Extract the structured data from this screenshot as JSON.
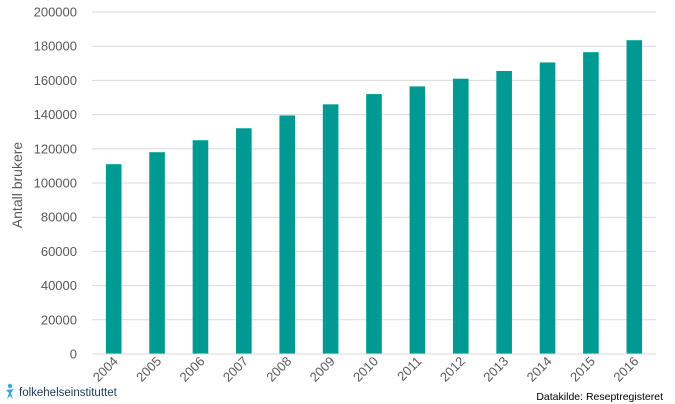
{
  "chart_data": {
    "type": "bar",
    "categories": [
      "2004",
      "2005",
      "2006",
      "2007",
      "2008",
      "2009",
      "2010",
      "2011",
      "2012",
      "2013",
      "2014",
      "2015",
      "2016"
    ],
    "values": [
      111000,
      118000,
      125000,
      132000,
      139500,
      146000,
      152000,
      156500,
      161000,
      165500,
      170500,
      176500,
      183500
    ],
    "ylabel": "Antall brukere",
    "ylim": [
      0,
      200000
    ],
    "yticks": [
      0,
      20000,
      40000,
      60000,
      80000,
      100000,
      120000,
      140000,
      160000,
      180000,
      200000
    ],
    "grid": true,
    "bar_color": "#009a93",
    "grid_color": "#d9d9d9"
  },
  "footer": {
    "source": "Datakilde: Reseptregisteret",
    "logo_text": "folkehelseinstituttet",
    "logo_icon": "fhi-figure-icon"
  }
}
